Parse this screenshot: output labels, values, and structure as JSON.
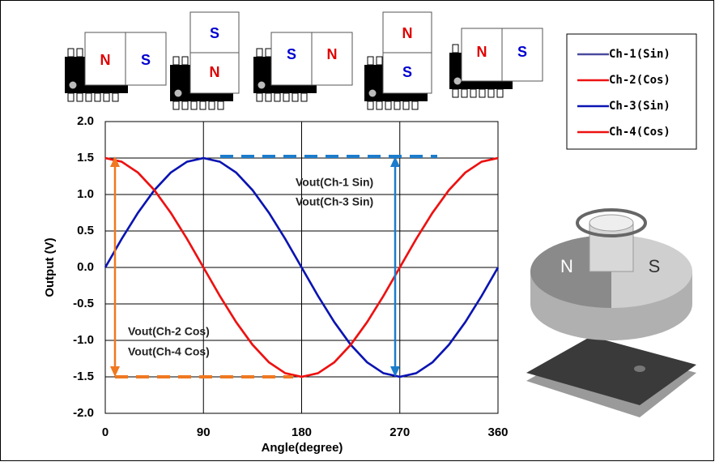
{
  "chart_data": {
    "type": "line",
    "x_label": "Angle(degree)",
    "y_label": "Output (V)",
    "annotations": [
      "Vout(Ch-1 Sin)",
      "Vout(Ch-3 Sin)",
      "Vout(Ch-2 Cos)",
      "Vout(Ch-4 Cos)"
    ],
    "x": [
      0,
      15,
      30,
      45,
      60,
      75,
      90,
      105,
      120,
      135,
      150,
      165,
      180,
      195,
      210,
      225,
      240,
      255,
      270,
      285,
      300,
      315,
      330,
      345,
      360
    ],
    "series": [
      {
        "name": "Ch-1(Sin)",
        "color": "#4a4aa0",
        "values": [
          0,
          0.39,
          0.75,
          1.06,
          1.3,
          1.45,
          1.5,
          1.45,
          1.3,
          1.06,
          0.75,
          0.39,
          0,
          -0.39,
          -0.75,
          -1.06,
          -1.3,
          -1.45,
          -1.5,
          -1.45,
          -1.3,
          -1.06,
          -0.75,
          -0.39,
          0
        ]
      },
      {
        "name": "Ch-2(Cos)",
        "color": "#ee1111",
        "values": [
          1.5,
          1.45,
          1.3,
          1.06,
          0.75,
          0.39,
          0,
          -0.39,
          -0.75,
          -1.06,
          -1.3,
          -1.45,
          -1.5,
          -1.45,
          -1.3,
          -1.06,
          -0.75,
          -0.39,
          0,
          0.39,
          0.75,
          1.06,
          1.3,
          1.45,
          1.5
        ]
      },
      {
        "name": "Ch-3(Sin)",
        "color": "#0a14b4",
        "values": [
          0,
          0.39,
          0.75,
          1.06,
          1.3,
          1.45,
          1.5,
          1.45,
          1.3,
          1.06,
          0.75,
          0.39,
          0,
          -0.39,
          -0.75,
          -1.06,
          -1.3,
          -1.45,
          -1.5,
          -1.45,
          -1.3,
          -1.06,
          -0.75,
          -0.39,
          0
        ]
      },
      {
        "name": "Ch-4(Cos)",
        "color": "#ee1111",
        "values": [
          1.5,
          1.45,
          1.3,
          1.06,
          0.75,
          0.39,
          0,
          -0.39,
          -0.75,
          -1.06,
          -1.3,
          -1.45,
          -1.5,
          -1.45,
          -1.3,
          -1.06,
          -0.75,
          -0.39,
          0,
          0.39,
          0.75,
          1.06,
          1.3,
          1.45,
          1.5
        ]
      }
    ],
    "xlim": [
      0,
      360
    ],
    "xticks": [
      0,
      90,
      180,
      270,
      360
    ],
    "ylim": [
      -2,
      2
    ],
    "yticks": [
      {
        "value": -2,
        "label": "-2.0"
      },
      {
        "value": -1.5,
        "label": "-1.5"
      },
      {
        "value": -1,
        "label": "-1.0"
      },
      {
        "value": -0.5,
        "label": "-0.5"
      },
      {
        "value": 0,
        "label": "0.0"
      },
      {
        "value": 0.5,
        "label": "0.5"
      },
      {
        "value": 1,
        "label": "1.0"
      },
      {
        "value": 1.5,
        "label": "1.5"
      },
      {
        "value": 2,
        "label": "2.0"
      }
    ],
    "grid": true,
    "legend": "upper-right"
  },
  "magnets": [
    [
      "N",
      "S"
    ],
    [
      "S",
      "N"
    ],
    [
      "S",
      "N"
    ],
    [
      "N",
      "S"
    ],
    [
      "N",
      "S"
    ]
  ],
  "rotor": [
    "N",
    "S"
  ]
}
